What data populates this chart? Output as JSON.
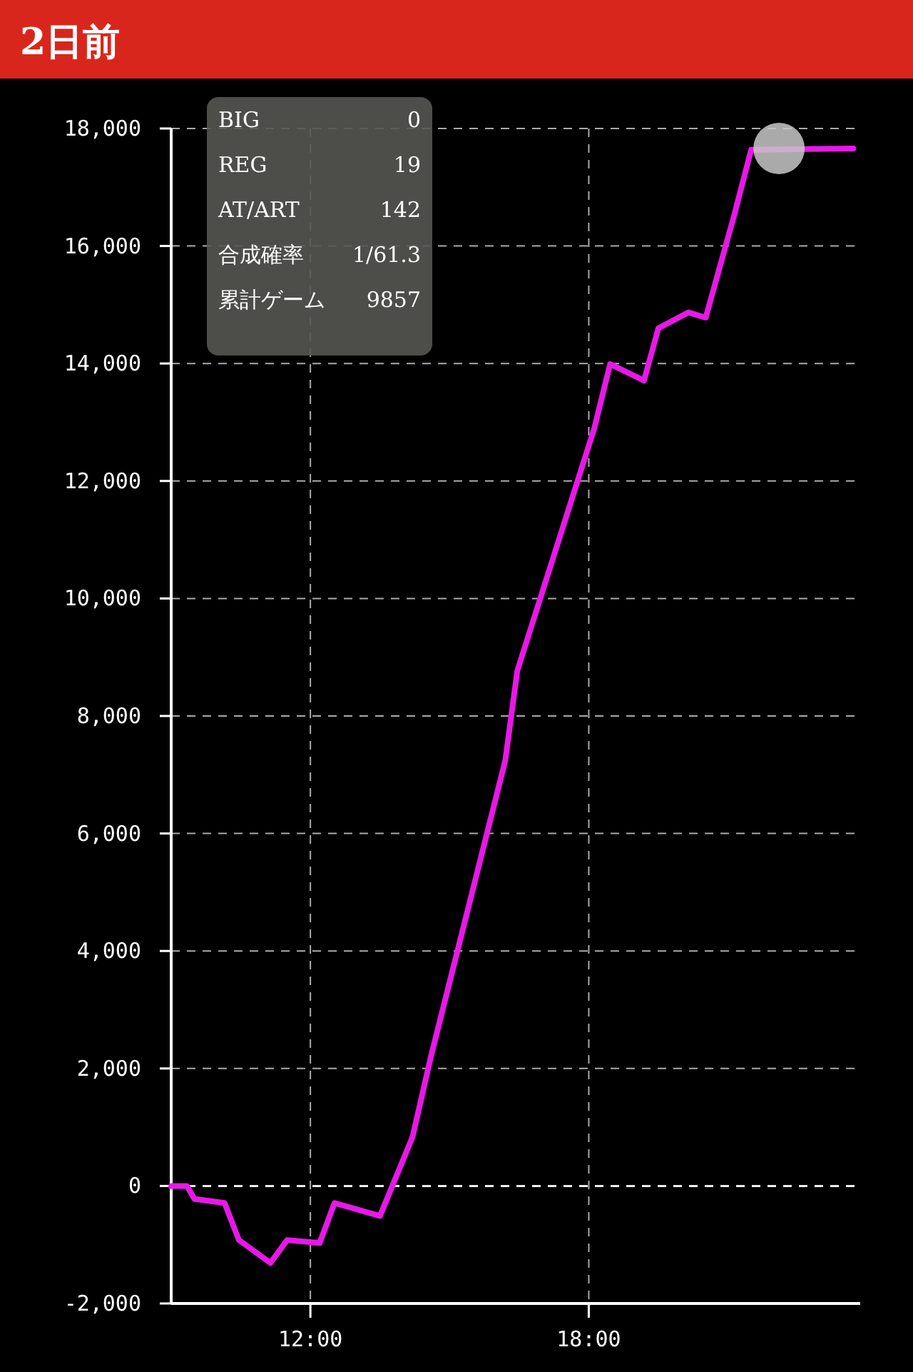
{
  "chart_data": {
    "type": "line",
    "title": "2日前",
    "xlim": [
      9,
      23.85
    ],
    "ylim": [
      -2000,
      18000
    ],
    "xticks": [
      {
        "value": 12,
        "label": "12:00"
      },
      {
        "value": 18,
        "label": "18:00"
      }
    ],
    "yticks": [
      {
        "value": -2000,
        "label": "-2,000"
      },
      0,
      {
        "value": 2000,
        "label": "2,000"
      },
      {
        "value": 4000,
        "label": "4,000"
      },
      {
        "value": 6000,
        "label": "6,000"
      },
      {
        "value": 8000,
        "label": "8,000"
      },
      {
        "value": 10000,
        "label": "10,000"
      },
      {
        "value": 12000,
        "label": "12,000"
      },
      {
        "value": 14000,
        "label": "14,000"
      },
      {
        "value": 16000,
        "label": "16,000"
      },
      {
        "value": 18000,
        "label": "18,000"
      }
    ],
    "grid": true,
    "ref_lines": [
      {
        "axis": "y",
        "value": 0,
        "color": "#eeeeee",
        "line_style": "dashed"
      }
    ],
    "annotations": [
      "BIG",
      "0",
      "REG",
      "19",
      "AT/ART",
      "142",
      "合成確率",
      "1/61.3",
      "累計ゲーム",
      "9857"
    ],
    "series": [
      {
        "color": "#e619e6",
        "x": [
          9.0,
          9.34,
          9.5,
          10.15,
          10.46,
          11.14,
          11.5,
          12.2,
          12.52,
          13.5,
          14.2,
          14.6,
          16.2,
          16.46,
          18.12,
          18.46,
          19.19,
          19.5,
          20.15,
          20.52,
          21.14,
          21.5,
          23.7
        ],
        "values": [
          0,
          0,
          -220,
          -290,
          -920,
          -1310,
          -920,
          -970,
          -290,
          -510,
          830,
          2210,
          7240,
          8770,
          12900,
          13990,
          13710,
          14600,
          14870,
          14780,
          16540,
          17640,
          17660
        ]
      },
      {
        "type": "scatter",
        "color": "#c8c8c8",
        "marker": "circle",
        "x": [
          22.1
        ],
        "values": [
          17660
        ]
      }
    ]
  }
}
